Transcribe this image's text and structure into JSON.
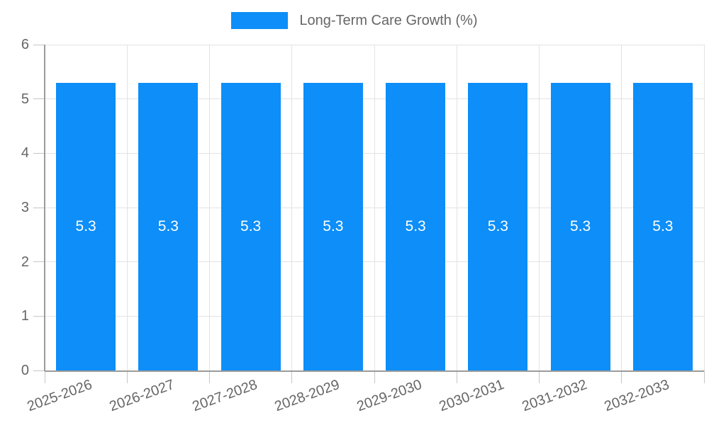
{
  "legend": {
    "label": "Long-Term Care Growth (%)"
  },
  "chart_data": {
    "type": "bar",
    "title": "",
    "xlabel": "",
    "ylabel": "",
    "categories": [
      "2025-2026",
      "2026-2027",
      "2027-2028",
      "2028-2029",
      "2029-2030",
      "2030-2031",
      "2031-2032",
      "2032-2033"
    ],
    "series": [
      {
        "name": "Long-Term Care Growth (%)",
        "values": [
          5.3,
          5.3,
          5.3,
          5.3,
          5.3,
          5.3,
          5.3,
          5.3
        ],
        "bar_labels": [
          "5.3",
          "5.3",
          "5.3",
          "5.3",
          "5.3",
          "5.3",
          "5.3",
          "5.3"
        ]
      }
    ],
    "ylim": [
      0,
      6
    ],
    "yticks": [
      0,
      1,
      2,
      3,
      4,
      5,
      6
    ],
    "grid": true,
    "legend_position": "top",
    "x_tick_rotation_deg": -20
  },
  "colors": {
    "bar": "#0d8ef8",
    "bar_label": "#ffffff",
    "text": "#666666",
    "grid": "#e3e3e3",
    "axis": "#9b9b9b",
    "tick": "#c5c5c5",
    "background": "#ffffff"
  }
}
